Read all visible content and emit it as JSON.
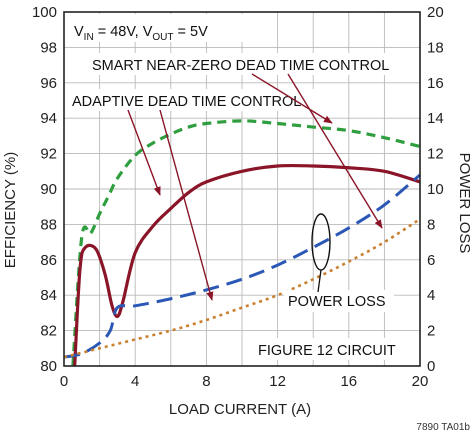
{
  "chart_data": {
    "type": "line",
    "x_axis": {
      "label": "LOAD CURRENT (A)",
      "range": [
        0,
        20
      ],
      "ticks": [
        0,
        4,
        8,
        12,
        16,
        20
      ],
      "tick_labels": [
        "0",
        "4",
        "8",
        "12",
        "16",
        "20"
      ],
      "grid_step": 2
    },
    "y_axis_left": {
      "label": "EFFICIENCY (%)",
      "range": [
        80,
        100
      ],
      "ticks": [
        80,
        82,
        84,
        86,
        88,
        90,
        92,
        94,
        96,
        98,
        100
      ],
      "tick_labels": [
        "80",
        "82",
        "84",
        "86",
        "88",
        "90",
        "92",
        "94",
        "96",
        "98",
        "100"
      ]
    },
    "y_axis_right": {
      "label": "POWER LOSS",
      "range": [
        0,
        20
      ],
      "ticks": [
        0,
        2,
        4,
        6,
        8,
        10,
        12,
        14,
        16,
        18,
        20
      ],
      "tick_labels": [
        "0",
        "2",
        "4",
        "6",
        "8",
        "10",
        "12",
        "14",
        "16",
        "18",
        "20"
      ]
    },
    "grid": true,
    "series": [
      {
        "key": "smart_efficiency",
        "axis": "left",
        "color": "#2e9e3e",
        "style": "dashed",
        "points": [
          [
            0.5,
            80
          ],
          [
            1.0,
            87.3
          ],
          [
            1.5,
            87.5
          ],
          [
            2.0,
            88.6
          ],
          [
            2.5,
            89.6
          ],
          [
            3.0,
            90.6
          ],
          [
            4.0,
            91.9
          ],
          [
            5.0,
            92.6
          ],
          [
            6.0,
            93.1
          ],
          [
            7.0,
            93.5
          ],
          [
            8.0,
            93.7
          ],
          [
            10.0,
            93.85
          ],
          [
            12.0,
            93.7
          ],
          [
            14.0,
            93.5
          ],
          [
            16.0,
            93.3
          ],
          [
            18.0,
            92.9
          ],
          [
            20.0,
            92.4
          ]
        ]
      },
      {
        "key": "adaptive_efficiency",
        "axis": "left",
        "color": "#8b1528",
        "style": "solid",
        "points": [
          [
            0.6,
            80
          ],
          [
            0.9,
            85.5
          ],
          [
            1.2,
            86.7
          ],
          [
            1.8,
            86.6
          ],
          [
            2.3,
            85.2
          ],
          [
            2.7,
            83.4
          ],
          [
            3.0,
            82.8
          ],
          [
            3.3,
            83.6
          ],
          [
            4.0,
            86.4
          ],
          [
            5.0,
            87.9
          ],
          [
            6.0,
            88.9
          ],
          [
            7.0,
            89.8
          ],
          [
            8.0,
            90.4
          ],
          [
            10.0,
            91.0
          ],
          [
            12.0,
            91.3
          ],
          [
            14.0,
            91.3
          ],
          [
            16.0,
            91.2
          ],
          [
            18.0,
            91.0
          ],
          [
            20.0,
            90.4
          ]
        ]
      },
      {
        "key": "smart_power_loss",
        "axis": "right",
        "color": "#2b58b6",
        "style": "long-dash",
        "points": [
          [
            0,
            0.5
          ],
          [
            1.0,
            0.7
          ],
          [
            2.0,
            1.3
          ],
          [
            2.6,
            2.0
          ],
          [
            3.0,
            3.3
          ],
          [
            4.0,
            3.4
          ],
          [
            6.0,
            3.8
          ],
          [
            8.0,
            4.3
          ],
          [
            10.0,
            4.9
          ],
          [
            12.0,
            5.7
          ],
          [
            14.0,
            6.7
          ],
          [
            16.0,
            7.8
          ],
          [
            18.0,
            9.1
          ],
          [
            20.0,
            10.8
          ]
        ]
      },
      {
        "key": "adaptive_power_loss",
        "axis": "right",
        "color": "#c87f2e",
        "style": "dotted",
        "points": [
          [
            0,
            0.5
          ],
          [
            2.0,
            1.0
          ],
          [
            4.0,
            1.5
          ],
          [
            6.0,
            2.0
          ],
          [
            8.0,
            2.6
          ],
          [
            10.0,
            3.3
          ],
          [
            12.0,
            4.0
          ],
          [
            14.0,
            4.9
          ],
          [
            16.0,
            5.9
          ],
          [
            18.0,
            7.0
          ],
          [
            20.0,
            8.3
          ]
        ]
      }
    ],
    "annotations": {
      "conditions_parts": [
        "V",
        "IN",
        " = 48V, V",
        "OUT",
        " = 5V"
      ],
      "smart_label": "SMART NEAR-ZERO DEAD TIME CONTROL",
      "adaptive_label": "ADAPTIVE DEAD TIME CONTROL",
      "power_loss_label": "POWER LOSS",
      "circuit_label": "FIGURE 12 CIRCUIT",
      "figure_id": "7890 TA01b"
    }
  }
}
